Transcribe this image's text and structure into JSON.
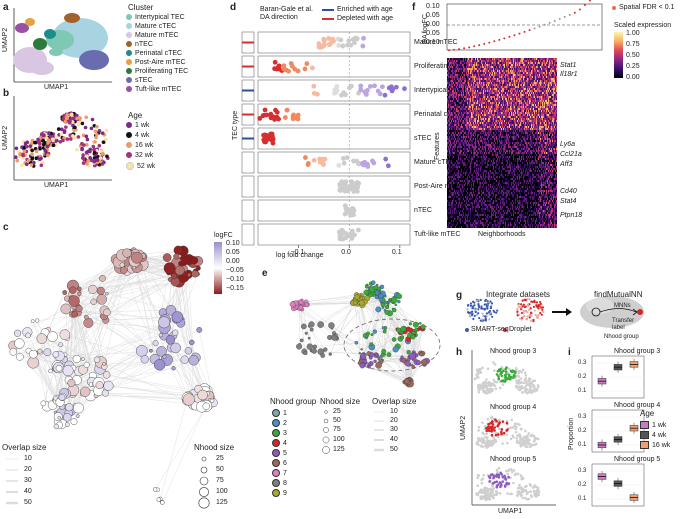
{
  "panels": {
    "a": "a",
    "b": "b",
    "c": "c",
    "d": "d",
    "e": "e",
    "f": "f",
    "g": "g",
    "h": "h",
    "i": "i"
  },
  "umap": {
    "xlabel": "UMAP1",
    "ylabel": "UMAP2"
  },
  "cluster_legend": {
    "title": "Cluster",
    "items": [
      {
        "label": "Intertypical TEC",
        "color": "#7fc8b3"
      },
      {
        "label": "Mature cTEC",
        "color": "#a8d3e0"
      },
      {
        "label": "Mature mTEC",
        "color": "#d9c6e3"
      },
      {
        "label": "nTEC",
        "color": "#a0632b"
      },
      {
        "label": "Perinatal cTEC",
        "color": "#1e8c88"
      },
      {
        "label": "Post-Aire mTEC",
        "color": "#e3a340"
      },
      {
        "label": "Proliferating TEC",
        "color": "#2d7b3c"
      },
      {
        "label": "sTEC",
        "color": "#6a6cb0"
      },
      {
        "label": "Tuft-like mTEC",
        "color": "#9b4fa5"
      }
    ]
  },
  "age_legend": {
    "title": "Age",
    "items": [
      {
        "label": "1 wk",
        "color": "#7b2a8d"
      },
      {
        "label": "4 wk",
        "color": "#111111"
      },
      {
        "label": "16 wk",
        "color": "#f09a6a"
      },
      {
        "label": "32 wk",
        "color": "#a33379"
      },
      {
        "label": "52 wk",
        "color": "#f7e4a8"
      }
    ]
  },
  "panel_c": {
    "logfc_title": "logFC",
    "logfc_ticks": [
      "0.10",
      "0.05",
      "0.00",
      "−0.05",
      "−0.10",
      "−0.15"
    ],
    "overlap_title": "Overlap size",
    "overlap_items": [
      "10",
      "20",
      "30",
      "40",
      "50"
    ],
    "nhood_title": "Nhood size",
    "nhood_items": [
      "25",
      "50",
      "75",
      "100",
      "125"
    ]
  },
  "chart_data": {
    "type": "scatter",
    "title": "",
    "xlabel": "log fold change",
    "ylabel": "TEC type",
    "xticks": [
      "−0.1",
      "0.0",
      "0.1"
    ],
    "xlim": [
      -0.18,
      0.12
    ],
    "categories": [
      "Mature mTEC",
      "Proliferating TEC",
      "Intertypical TEC",
      "Perinatal cTEC",
      "sTEC",
      "Mature cTEC",
      "Post-Aire mTEC",
      "nTEC",
      "Tuft-like mTEC"
    ],
    "legend": {
      "title": "Baran-Gale et al.\nDA direction",
      "items": [
        {
          "label": "Enriched with age",
          "color": "#2c4fa3"
        },
        {
          "label": "Depleted with age",
          "color": "#d62f2f"
        }
      ]
    },
    "da_direction": [
      "Depleted with age",
      "Depleted with age",
      "Enriched with age",
      "Depleted with age",
      "Enriched with age",
      "",
      "",
      "",
      ""
    ]
  },
  "panel_e": {
    "title": "Nhood group",
    "groups": [
      {
        "label": "1",
        "color": "#7fa6a8"
      },
      {
        "label": "2",
        "color": "#4c8ec6"
      },
      {
        "label": "3",
        "color": "#3aaa3a"
      },
      {
        "label": "4",
        "color": "#d62728"
      },
      {
        "label": "5",
        "color": "#8e5cc0"
      },
      {
        "label": "6",
        "color": "#9b6a5a"
      },
      {
        "label": "7",
        "color": "#e07fc0"
      },
      {
        "label": "8",
        "color": "#7f7f7f"
      },
      {
        "label": "9",
        "color": "#a8a832"
      }
    ],
    "nhood_title": "Nhood size",
    "nhood_items": [
      "25",
      "50",
      "75",
      "100",
      "125"
    ],
    "overlap_title": "Overlap size",
    "overlap_items": [
      "10",
      "20",
      "30",
      "40",
      "50"
    ]
  },
  "panel_f": {
    "ylabel": "DA logFC",
    "yticks": [
      "0.10",
      "0.05",
      "0.00",
      "−0.05",
      "−0.10"
    ],
    "legend": "Spatial FDR < 0.1",
    "scale_title": "Scaled expression",
    "scale_ticks": [
      "1.00",
      "0.75",
      "0.50",
      "0.25",
      "0.00"
    ],
    "features_label": "Features",
    "neigh_label": "Neighborhoods",
    "genes": [
      "Stat1",
      "Il18r1",
      "Ly6a",
      "Ccl21a",
      "Aff3",
      "Cd40",
      "Stat4",
      "Ptpn18"
    ]
  },
  "panel_g": {
    "integrate": "Integrate datasets",
    "find": "findMutualNN",
    "mnns": "MNNs",
    "transfer": "Transfer\nlabel",
    "nhood_group": "Nhood group",
    "smart": "SMART-seq",
    "droplet": "Droplet"
  },
  "panel_h": {
    "groups": [
      "Nhood group 3",
      "Nhood group 4",
      "Nhood group 5"
    ],
    "xlabel": "UMAP1",
    "ylabel": "UMAP2"
  },
  "panel_i": {
    "titles": [
      "Nhood group 3",
      "Nhood group 4",
      "Nhood group 5"
    ],
    "ylabel": "Proportion",
    "yticks": [
      [
        "0.3",
        "0.2",
        "0.1"
      ],
      [
        "0.3",
        "0.2",
        "0.1"
      ],
      [
        "0.3",
        "0.2",
        "0.1"
      ]
    ],
    "legend_title": "Age",
    "legend": [
      {
        "label": "1 wk",
        "color": "#c77bc2"
      },
      {
        "label": "4 wk",
        "color": "#555555"
      },
      {
        "label": "16 wk",
        "color": "#f0a070"
      }
    ]
  }
}
